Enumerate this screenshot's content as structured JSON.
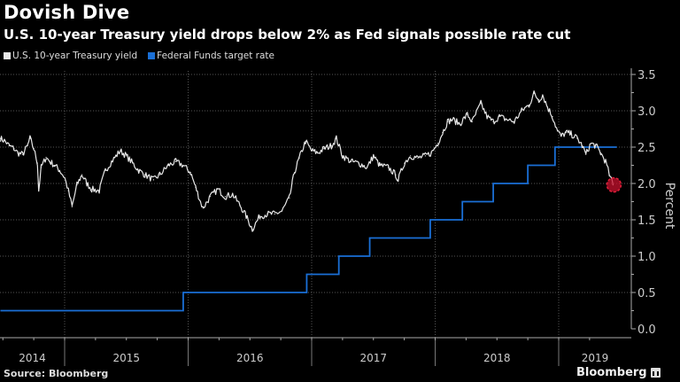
{
  "header": {
    "title": "Dovish Dive",
    "subtitle": "U.S. 10-year Treasury yield drops below 2% as Fed signals possible rate cut"
  },
  "footer": {
    "source": "Source: Bloomberg",
    "brand": "Bloomberg"
  },
  "chart_data": {
    "type": "line",
    "title": "Dovish Dive",
    "subtitle": "U.S. 10-year Treasury yield drops below 2% as Fed signals possible rate cut",
    "xlabel": "",
    "ylabel": "Percent",
    "ylim": [
      0,
      3.5
    ],
    "xlim": [
      2014.48,
      2019.47
    ],
    "y_ticks": [
      "0.0",
      "0.5",
      "1.0",
      "1.5",
      "2.0",
      "2.5",
      "3.0",
      "3.5"
    ],
    "y_tick_values": [
      0,
      0.5,
      1,
      1.5,
      2,
      2.5,
      3,
      3.5
    ],
    "x_ticks": [
      "2014",
      "2015",
      "2016",
      "2017",
      "2018",
      "2019"
    ],
    "x_year_boundaries": [
      2015,
      2016,
      2017,
      2018,
      2019
    ],
    "grid": true,
    "legend_position": "top-left",
    "y_axis_side": "right",
    "annotations": [
      {
        "type": "highlight-circle",
        "x": 2019.44,
        "y": 1.98,
        "color": "#c8102e"
      }
    ],
    "series": [
      {
        "name": "U.S. 10-year Treasury yield",
        "color": "#ffffff",
        "style": "line",
        "points": [
          [
            2014.48,
            2.62
          ],
          [
            2014.52,
            2.58
          ],
          [
            2014.55,
            2.52
          ],
          [
            2014.59,
            2.48
          ],
          [
            2014.62,
            2.42
          ],
          [
            2014.66,
            2.4
          ],
          [
            2014.7,
            2.52
          ],
          [
            2014.72,
            2.62
          ],
          [
            2014.75,
            2.48
          ],
          [
            2014.78,
            2.28
          ],
          [
            2014.79,
            1.9
          ],
          [
            2014.81,
            2.22
          ],
          [
            2014.85,
            2.36
          ],
          [
            2014.88,
            2.3
          ],
          [
            2014.92,
            2.25
          ],
          [
            2014.96,
            2.18
          ],
          [
            2015.0,
            2.08
          ],
          [
            2015.03,
            1.9
          ],
          [
            2015.06,
            1.68
          ],
          [
            2015.1,
            1.98
          ],
          [
            2015.14,
            2.12
          ],
          [
            2015.18,
            2.0
          ],
          [
            2015.22,
            1.92
          ],
          [
            2015.28,
            1.9
          ],
          [
            2015.33,
            2.18
          ],
          [
            2015.38,
            2.3
          ],
          [
            2015.45,
            2.45
          ],
          [
            2015.5,
            2.38
          ],
          [
            2015.55,
            2.28
          ],
          [
            2015.6,
            2.18
          ],
          [
            2015.65,
            2.12
          ],
          [
            2015.72,
            2.05
          ],
          [
            2015.77,
            2.12
          ],
          [
            2015.84,
            2.25
          ],
          [
            2015.9,
            2.3
          ],
          [
            2015.96,
            2.25
          ],
          [
            2016.02,
            2.15
          ],
          [
            2016.06,
            1.95
          ],
          [
            2016.1,
            1.75
          ],
          [
            2016.12,
            1.66
          ],
          [
            2016.18,
            1.82
          ],
          [
            2016.24,
            1.92
          ],
          [
            2016.3,
            1.82
          ],
          [
            2016.36,
            1.85
          ],
          [
            2016.42,
            1.7
          ],
          [
            2016.47,
            1.55
          ],
          [
            2016.52,
            1.37
          ],
          [
            2016.58,
            1.55
          ],
          [
            2016.64,
            1.58
          ],
          [
            2016.7,
            1.58
          ],
          [
            2016.76,
            1.62
          ],
          [
            2016.82,
            1.8
          ],
          [
            2016.86,
            2.15
          ],
          [
            2016.9,
            2.35
          ],
          [
            2016.95,
            2.58
          ],
          [
            2017.0,
            2.45
          ],
          [
            2017.05,
            2.42
          ],
          [
            2017.1,
            2.48
          ],
          [
            2017.16,
            2.52
          ],
          [
            2017.2,
            2.62
          ],
          [
            2017.25,
            2.38
          ],
          [
            2017.32,
            2.3
          ],
          [
            2017.38,
            2.28
          ],
          [
            2017.45,
            2.22
          ],
          [
            2017.5,
            2.38
          ],
          [
            2017.55,
            2.25
          ],
          [
            2017.62,
            2.22
          ],
          [
            2017.68,
            2.12
          ],
          [
            2017.7,
            2.05
          ],
          [
            2017.75,
            2.28
          ],
          [
            2017.8,
            2.38
          ],
          [
            2017.86,
            2.35
          ],
          [
            2017.92,
            2.38
          ],
          [
            2017.97,
            2.42
          ],
          [
            2018.02,
            2.55
          ],
          [
            2018.06,
            2.7
          ],
          [
            2018.1,
            2.85
          ],
          [
            2018.14,
            2.88
          ],
          [
            2018.2,
            2.82
          ],
          [
            2018.26,
            2.95
          ],
          [
            2018.3,
            2.85
          ],
          [
            2018.37,
            3.1
          ],
          [
            2018.42,
            2.92
          ],
          [
            2018.47,
            2.85
          ],
          [
            2018.52,
            2.92
          ],
          [
            2018.58,
            2.88
          ],
          [
            2018.64,
            2.85
          ],
          [
            2018.7,
            3.0
          ],
          [
            2018.76,
            3.08
          ],
          [
            2018.8,
            3.24
          ],
          [
            2018.84,
            3.15
          ],
          [
            2018.87,
            3.22
          ],
          [
            2018.91,
            3.05
          ],
          [
            2018.95,
            2.92
          ],
          [
            2018.99,
            2.72
          ],
          [
            2019.02,
            2.65
          ],
          [
            2019.06,
            2.7
          ],
          [
            2019.1,
            2.68
          ],
          [
            2019.15,
            2.62
          ],
          [
            2019.19,
            2.52
          ],
          [
            2019.22,
            2.4
          ],
          [
            2019.26,
            2.55
          ],
          [
            2019.3,
            2.52
          ],
          [
            2019.34,
            2.42
          ],
          [
            2019.38,
            2.3
          ],
          [
            2019.41,
            2.12
          ],
          [
            2019.44,
            1.98
          ]
        ]
      },
      {
        "name": "Federal Funds target rate",
        "color": "#1a6fd6",
        "style": "step",
        "points": [
          [
            2014.48,
            0.25
          ],
          [
            2015.96,
            0.5
          ],
          [
            2016.96,
            0.75
          ],
          [
            2017.22,
            1.0
          ],
          [
            2017.47,
            1.25
          ],
          [
            2017.96,
            1.5
          ],
          [
            2018.22,
            1.75
          ],
          [
            2018.47,
            2.0
          ],
          [
            2018.75,
            2.25
          ],
          [
            2018.97,
            2.5
          ],
          [
            2019.47,
            2.5
          ]
        ]
      }
    ]
  }
}
